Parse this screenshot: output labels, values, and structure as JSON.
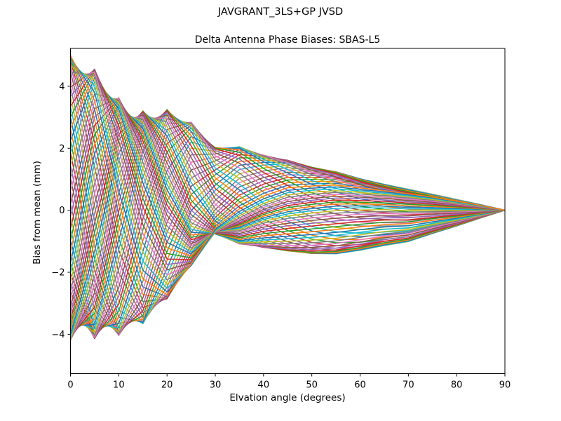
{
  "chart_data": {
    "type": "line",
    "title": "JAVGRANT_3LS+GP JVSD",
    "subtitle": "Delta Antenna Phase Biases: SBAS-L5",
    "xlabel": "Elvation angle (degrees)",
    "ylabel": "Bias from mean (mm)",
    "xlim": [
      0,
      90
    ],
    "ylim": [
      -5.27,
      5.22
    ],
    "xticks": [
      0,
      10,
      20,
      30,
      40,
      50,
      60,
      70,
      80,
      90
    ],
    "xticklabels": [
      "0",
      "10",
      "20",
      "30",
      "40",
      "50",
      "60",
      "70",
      "80",
      "90"
    ],
    "yticks": [
      -4,
      -2,
      0,
      2,
      4
    ],
    "yticklabels": [
      "−4",
      "−2",
      "0",
      "2",
      "4"
    ],
    "grid": false,
    "legend": "none",
    "line_width": 1.5,
    "spine_color": "#000000",
    "colors": [
      "#1f77b4",
      "#ff7f0e",
      "#2ca02c",
      "#d62728",
      "#9467bd",
      "#8c564b",
      "#e377c2",
      "#7f7f7f",
      "#bcbd22",
      "#17becf"
    ],
    "x": [
      0,
      5,
      10,
      15,
      20,
      25,
      30,
      35,
      40,
      45,
      50,
      55,
      60,
      65,
      70,
      75,
      80,
      85,
      90
    ],
    "series_model": {
      "note": "72 unlabeled curves, one per azimuth (0-355 deg, step 5). value(elev_i, az) = mean[i] + amp1[i]*cos(az + phase1_rad[i]) + amp2[i]*cos(2*az + phase2_rad[i]), az in radians. All curves converge to 0 mm at 90 deg elevation; envelope spans about +5.0 to -4.2 mm at 0 deg.",
      "azimuth_start_deg": 0,
      "azimuth_step_deg": 5,
      "azimuth_count": 72,
      "mean": [
        0.1,
        0.1,
        0.1,
        0.15,
        0.2,
        0.2,
        0.22,
        0.25,
        0.2,
        0.15,
        0.05,
        0.0,
        -0.05,
        -0.07,
        -0.1,
        -0.07,
        -0.05,
        -0.02,
        0.0
      ],
      "amp1": [
        4.6,
        4.3,
        3.8,
        3.4,
        2.9,
        2.2,
        1.35,
        1.45,
        1.35,
        1.35,
        1.3,
        1.25,
        1.1,
        0.95,
        0.82,
        0.62,
        0.42,
        0.21,
        0.0
      ],
      "amp2": [
        0.3,
        0.35,
        0.4,
        0.45,
        0.5,
        0.5,
        0.45,
        0.4,
        0.35,
        0.3,
        0.27,
        0.24,
        0.2,
        0.16,
        0.12,
        0.08,
        0.05,
        0.02,
        0.0
      ],
      "phase1_rad": [
        0.0,
        0.85,
        1.7,
        2.5,
        3.25,
        3.9,
        4.45,
        4.9,
        5.25,
        5.5,
        5.68,
        5.8,
        5.88,
        5.93,
        5.96,
        5.98,
        5.99,
        6.0,
        6.0
      ],
      "phase2_rad": [
        0.0,
        0.45,
        0.9,
        1.35,
        1.8,
        2.2,
        2.55,
        2.8,
        3.0,
        3.15,
        3.25,
        3.32,
        3.37,
        3.4,
        3.42,
        3.43,
        3.44,
        3.45,
        3.45
      ]
    }
  }
}
